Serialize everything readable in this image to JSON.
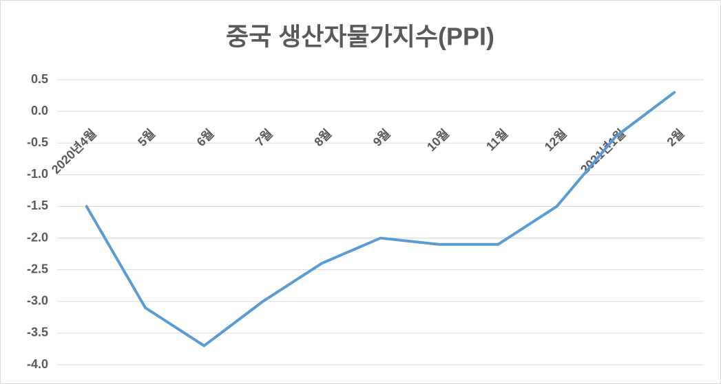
{
  "chart_data": {
    "type": "line",
    "title": "중국 생산자물가지수(PPI)",
    "categories": [
      "2020년4월",
      "5월",
      "6월",
      "7월",
      "8월",
      "9월",
      "10월",
      "11월",
      "12월",
      "2021년1월",
      "2월"
    ],
    "series": [
      {
        "name": "PPI",
        "color": "#5b9bd5",
        "values": [
          -1.5,
          -3.1,
          -3.7,
          -3.0,
          -2.4,
          -2.0,
          -2.1,
          -2.1,
          -1.5,
          -0.4,
          0.3
        ]
      }
    ],
    "ylim": [
      -4,
      0.5
    ],
    "yticks": [
      0.5,
      {
        "value": 0,
        "label": "0.0"
      },
      -0.5,
      {
        "value": -1,
        "label": "-1.0"
      },
      -1.5,
      {
        "value": -2,
        "label": "-2.0"
      },
      -2.5,
      {
        "value": -3,
        "label": "-3.0"
      },
      -3.5,
      {
        "value": -4,
        "label": "-4.0"
      }
    ],
    "grid": true
  }
}
